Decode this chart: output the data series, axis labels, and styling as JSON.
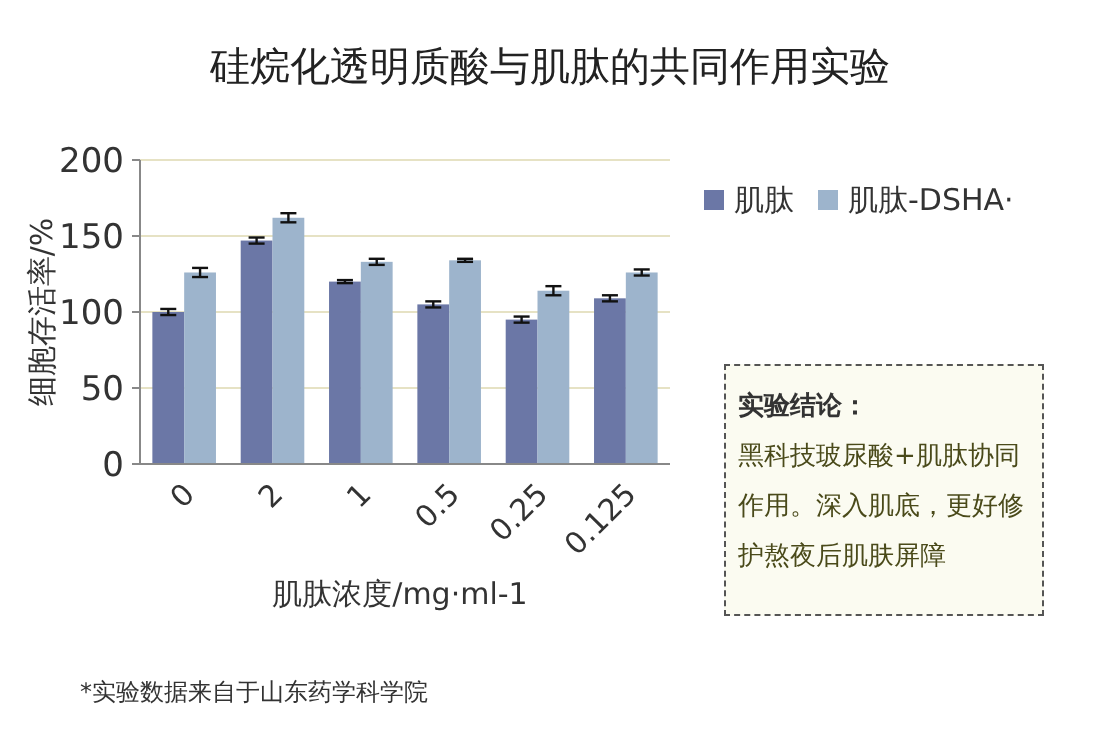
{
  "chart_data": {
    "type": "bar",
    "title": "硅烷化透明质酸与肌肽的共同作用实验",
    "xlabel": "肌肽浓度/mg·ml-1",
    "ylabel": "细胞存活率/%",
    "categories": [
      "0",
      "2",
      "1",
      "0.5",
      "0.25",
      "0.125"
    ],
    "series": [
      {
        "name": "肌肽",
        "color": "#6b77a6",
        "values": [
          100,
          147,
          120,
          105,
          95,
          109
        ],
        "errors": [
          2,
          2,
          1,
          2,
          2,
          2
        ]
      },
      {
        "name": "肌肽-DSHA·",
        "color": "#9db4cc",
        "values": [
          126,
          162,
          133,
          134,
          114,
          126
        ],
        "errors": [
          3,
          3,
          2,
          1,
          3,
          2
        ]
      }
    ],
    "ylim": [
      0,
      200
    ],
    "yticks": [
      0,
      50,
      100,
      150,
      200
    ],
    "grid": "y",
    "legend": "right",
    "annotations": [
      "实验结论：",
      "黑科技玻尿酸+肌肽协同作用。深入肌底，更好修护熬夜后肌肤屏障",
      "*实验数据来自于山东药学科学院"
    ]
  }
}
